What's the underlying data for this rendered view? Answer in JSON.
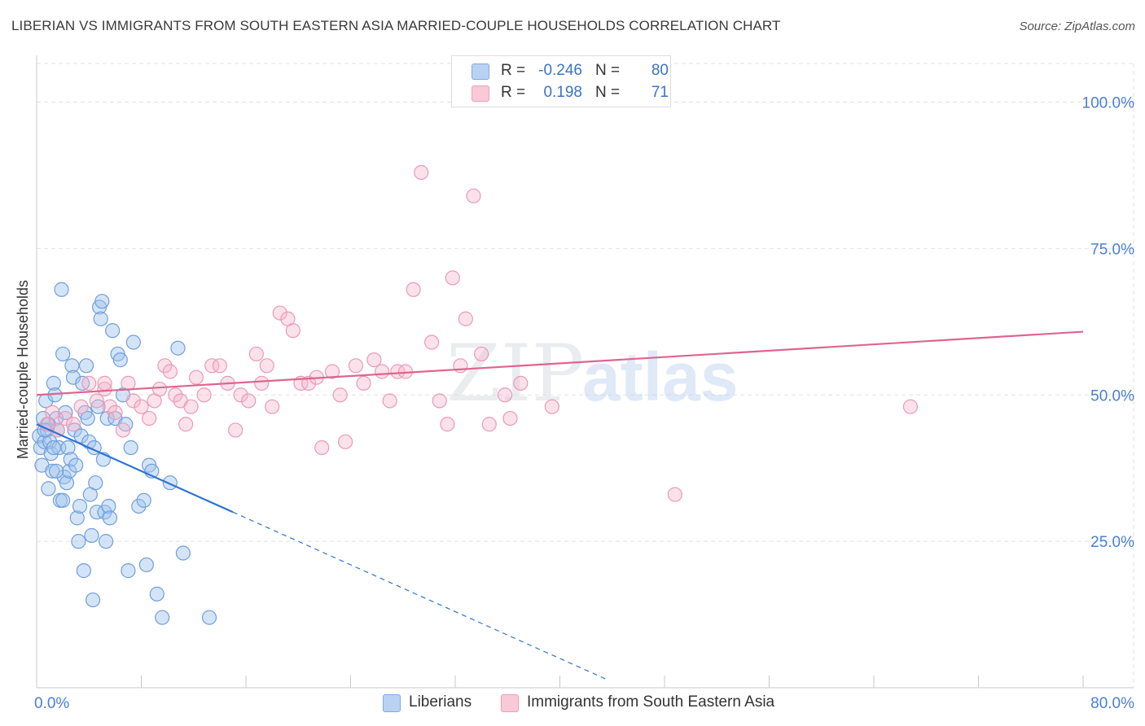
{
  "title": "LIBERIAN VS IMMIGRANTS FROM SOUTH EASTERN ASIA MARRIED-COUPLE HOUSEHOLDS CORRELATION CHART",
  "source": "Source: ZipAtlas.com",
  "watermark": {
    "zip": "ZIP",
    "atlas": "atlas"
  },
  "legend": {
    "rows": [
      {
        "r_label": "R =",
        "r_value": "-0.246",
        "n_label": "N =",
        "n_value": "80",
        "fill": "#b9d2f3",
        "stroke": "#7fa8e0"
      },
      {
        "r_label": "R =",
        "r_value": "0.198",
        "n_label": "N =",
        "n_value": "71",
        "fill": "#f9c9d8",
        "stroke": "#ef9db6"
      }
    ]
  },
  "bottom_legend": [
    {
      "label": "Liberians",
      "fill": "#b9d2f3",
      "stroke": "#7fa8e0"
    },
    {
      "label": "Immigrants from South Eastern Asia",
      "fill": "#f9c9d8",
      "stroke": "#ef9db6"
    }
  ],
  "colors": {
    "blue_point_fill": "rgba(160,195,238,0.45)",
    "blue_point_stroke": "#6f9fdc",
    "blue_line": "#2f72d6",
    "pink_point_fill": "rgba(246,180,202,0.40)",
    "pink_point_stroke": "#eb9ab5",
    "pink_line": "#e0648e",
    "axis_label": "#4a7fd0",
    "grid": "#e2e2e2"
  },
  "chart_data": {
    "type": "scatter",
    "title": "LIBERIAN VS IMMIGRANTS FROM SOUTH EASTERN ASIA MARRIED-COUPLE HOUSEHOLDS CORRELATION CHART",
    "xlabel": "",
    "ylabel": "Married-couple Households",
    "xlim": [
      0,
      80
    ],
    "ylim": [
      0,
      108
    ],
    "x_tick_labels": [
      {
        "value": 0,
        "label": "0.0%"
      },
      {
        "value": 80,
        "label": "80.0%"
      }
    ],
    "x_tick_marks": [
      0,
      8,
      16,
      24,
      32,
      40,
      48,
      56,
      64,
      72,
      80
    ],
    "y_ticks": [
      {
        "value": 25,
        "label": "25.0%"
      },
      {
        "value": 50,
        "label": "50.0%"
      },
      {
        "value": 75,
        "label": "75.0%"
      },
      {
        "value": 100,
        "label": "100.0%"
      }
    ],
    "grid": true,
    "series": [
      {
        "name": "Liberians",
        "r": -0.246,
        "n": 80,
        "trend": {
          "x0": 0,
          "y0": 45.0,
          "x1": 15,
          "y1": 30.0,
          "x_dash_end": 43.5
        },
        "points": [
          [
            0.2,
            43
          ],
          [
            0.3,
            41
          ],
          [
            0.4,
            38
          ],
          [
            0.5,
            46
          ],
          [
            0.6,
            42
          ],
          [
            0.7,
            49
          ],
          [
            0.8,
            44
          ],
          [
            0.9,
            34
          ],
          [
            1.0,
            42
          ],
          [
            1.1,
            40
          ],
          [
            1.2,
            37
          ],
          [
            1.3,
            52
          ],
          [
            1.4,
            50
          ],
          [
            1.5,
            46
          ],
          [
            1.6,
            44
          ],
          [
            1.7,
            41
          ],
          [
            1.8,
            32
          ],
          [
            1.9,
            68
          ],
          [
            2.0,
            57
          ],
          [
            2.1,
            36
          ],
          [
            2.2,
            47
          ],
          [
            2.3,
            35
          ],
          [
            2.4,
            41
          ],
          [
            2.5,
            37
          ],
          [
            2.6,
            39
          ],
          [
            2.7,
            55
          ],
          [
            2.8,
            53
          ],
          [
            2.9,
            44
          ],
          [
            3.0,
            38
          ],
          [
            3.1,
            29
          ],
          [
            3.2,
            25
          ],
          [
            3.3,
            31
          ],
          [
            3.4,
            43
          ],
          [
            3.5,
            52
          ],
          [
            3.6,
            20
          ],
          [
            3.7,
            47
          ],
          [
            3.8,
            55
          ],
          [
            3.9,
            46
          ],
          [
            4.0,
            42
          ],
          [
            4.1,
            33
          ],
          [
            4.2,
            26
          ],
          [
            4.3,
            15
          ],
          [
            4.4,
            41
          ],
          [
            4.5,
            35
          ],
          [
            4.6,
            30
          ],
          [
            4.7,
            48
          ],
          [
            4.8,
            65
          ],
          [
            4.9,
            63
          ],
          [
            5.0,
            66
          ],
          [
            5.1,
            39
          ],
          [
            5.2,
            30
          ],
          [
            5.3,
            25
          ],
          [
            5.4,
            46
          ],
          [
            5.5,
            31
          ],
          [
            5.6,
            29
          ],
          [
            5.8,
            61
          ],
          [
            6.0,
            46
          ],
          [
            6.2,
            57
          ],
          [
            6.4,
            56
          ],
          [
            6.6,
            50
          ],
          [
            6.8,
            45
          ],
          [
            7.0,
            20
          ],
          [
            7.2,
            41
          ],
          [
            7.4,
            59
          ],
          [
            7.8,
            31
          ],
          [
            8.2,
            32
          ],
          [
            8.4,
            21
          ],
          [
            8.6,
            38
          ],
          [
            8.8,
            37
          ],
          [
            9.2,
            16
          ],
          [
            9.6,
            12
          ],
          [
            10.2,
            35
          ],
          [
            10.8,
            58
          ],
          [
            11.2,
            23
          ],
          [
            13.2,
            12
          ],
          [
            0.9,
            45
          ],
          [
            1.3,
            41
          ],
          [
            0.6,
            44
          ],
          [
            2.0,
            32
          ],
          [
            1.5,
            37
          ]
        ]
      },
      {
        "name": "Immigrants from South Eastern Asia",
        "r": 0.198,
        "n": 71,
        "trend": {
          "x0": 0,
          "y0": 50.0,
          "x1": 80,
          "y1": 60.8
        },
        "points": [
          [
            0.8,
            45
          ],
          [
            1.2,
            47
          ],
          [
            1.6,
            44
          ],
          [
            2.2,
            46
          ],
          [
            2.8,
            45
          ],
          [
            3.4,
            48
          ],
          [
            4.0,
            52
          ],
          [
            4.6,
            49
          ],
          [
            5.2,
            51
          ],
          [
            5.6,
            48
          ],
          [
            6.0,
            47
          ],
          [
            6.6,
            44
          ],
          [
            7.0,
            52
          ],
          [
            7.4,
            49
          ],
          [
            8.0,
            48
          ],
          [
            8.6,
            46
          ],
          [
            9.0,
            49
          ],
          [
            9.4,
            51
          ],
          [
            9.8,
            55
          ],
          [
            10.2,
            54
          ],
          [
            10.6,
            50
          ],
          [
            11.0,
            49
          ],
          [
            11.4,
            45
          ],
          [
            11.8,
            48
          ],
          [
            12.2,
            53
          ],
          [
            12.8,
            50
          ],
          [
            13.4,
            55
          ],
          [
            14.0,
            55
          ],
          [
            14.6,
            52
          ],
          [
            15.2,
            44
          ],
          [
            15.6,
            50
          ],
          [
            16.2,
            49
          ],
          [
            16.8,
            57
          ],
          [
            17.2,
            52
          ],
          [
            17.6,
            55
          ],
          [
            18.0,
            48
          ],
          [
            18.6,
            64
          ],
          [
            19.2,
            63
          ],
          [
            19.6,
            61
          ],
          [
            20.2,
            52
          ],
          [
            20.8,
            52
          ],
          [
            21.4,
            53
          ],
          [
            21.8,
            41
          ],
          [
            22.6,
            54
          ],
          [
            23.2,
            50
          ],
          [
            23.6,
            42
          ],
          [
            24.4,
            55
          ],
          [
            25.0,
            52
          ],
          [
            25.8,
            56
          ],
          [
            26.4,
            54
          ],
          [
            27.0,
            49
          ],
          [
            27.6,
            54
          ],
          [
            28.2,
            54
          ],
          [
            28.8,
            68
          ],
          [
            29.4,
            88
          ],
          [
            30.2,
            59
          ],
          [
            30.8,
            49
          ],
          [
            31.4,
            45
          ],
          [
            31.8,
            70
          ],
          [
            32.4,
            55
          ],
          [
            32.8,
            63
          ],
          [
            33.4,
            84
          ],
          [
            34.0,
            57
          ],
          [
            34.6,
            45
          ],
          [
            35.8,
            50
          ],
          [
            36.2,
            46
          ],
          [
            37.0,
            52
          ],
          [
            39.4,
            48
          ],
          [
            48.8,
            33
          ],
          [
            66.8,
            48
          ],
          [
            5.2,
            52
          ]
        ]
      }
    ]
  }
}
